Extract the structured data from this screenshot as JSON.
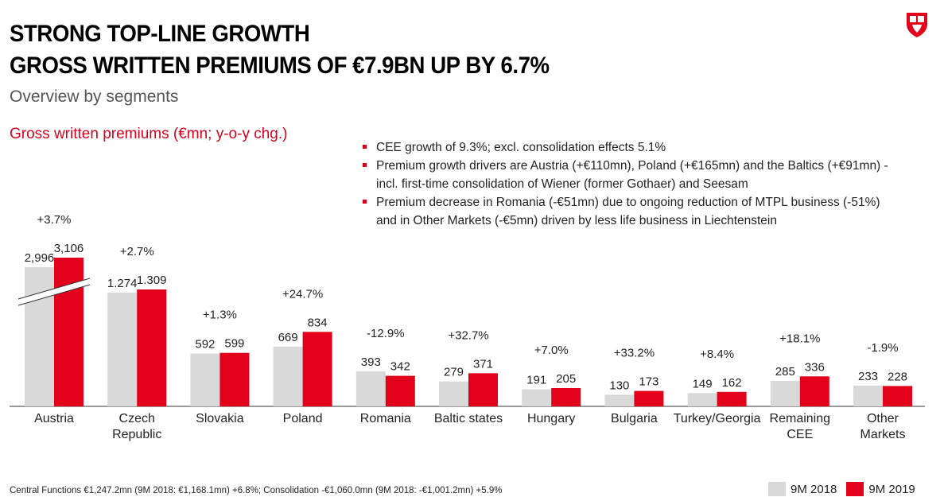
{
  "header": {
    "title_line1": "STRONG TOP-LINE GROWTH",
    "title_line2": "GROSS WRITTEN PREMIUMS OF €7.9BN UP BY 6.7%",
    "subtitle": "Overview by segments"
  },
  "section_label": "Gross written premiums (€mn; y-o-y chg.)",
  "bullets": [
    "CEE growth of 9.3%; excl. consolidation effects 5.1%",
    "Premium growth drivers are Austria (+€110mn), Poland (+€165mn) and the Baltics (+€91mn) - incl. first-time consolidation of Wiener (former Gothaer) and Seesam",
    "Premium decrease in Romania (-€51mn) due to ongoing reduction of MTPL business (-51%) and in Other Markets (-€5mn) driven by less life business in Liechtenstein"
  ],
  "chart_data": {
    "type": "bar",
    "categories": [
      "Austria",
      "Czech Republic",
      "Slovakia",
      "Poland",
      "Romania",
      "Baltic states",
      "Hungary",
      "Bulgaria",
      "Turkey/Georgia",
      "Remaining CEE",
      "Other Markets"
    ],
    "category_lines": [
      [
        "Austria"
      ],
      [
        "Czech",
        "Republic"
      ],
      [
        "Slovakia"
      ],
      [
        "Poland"
      ],
      [
        "Romania"
      ],
      [
        "Baltic states"
      ],
      [
        "Hungary"
      ],
      [
        "Bulgaria"
      ],
      [
        "Turkey/Georgia"
      ],
      [
        "Remaining",
        "CEE"
      ],
      [
        "Other",
        "Markets"
      ]
    ],
    "series": [
      {
        "name": "9M 2018",
        "color": "#d9d9d9",
        "values": [
          2996,
          1274,
          592,
          669,
          393,
          279,
          191,
          130,
          149,
          285,
          233
        ],
        "labels": [
          "2,996",
          "1.274",
          "592",
          "669",
          "393",
          "279",
          "191",
          "130",
          "149",
          "285",
          "233"
        ]
      },
      {
        "name": "9M 2019",
        "color": "#e2001a",
        "values": [
          3106,
          1309,
          599,
          834,
          342,
          371,
          205,
          173,
          162,
          336,
          228
        ],
        "labels": [
          "3,106",
          "1.309",
          "599",
          "834",
          "342",
          "371",
          "205",
          "173",
          "162",
          "336",
          "228"
        ]
      }
    ],
    "changes": [
      "+3.7%",
      "+2.7%",
      "+1.3%",
      "+24.7%",
      "-12.9%",
      "+32.7%",
      "+7.0%",
      "+33.2%",
      "+8.4%",
      "+18.1%",
      "-1.9%"
    ],
    "broken_axis_category": "Austria",
    "legend_position": "bottom-right",
    "grid": false
  },
  "footnote": "Central Functions €1,247.2mn (9M 2018: €1,168.1mn) +6.8%; Consolidation -€1,060.0mn (9M 2018: -€1,001.2mn) +5.9%",
  "legend": {
    "items": [
      "9M 2018",
      "9M 2019"
    ]
  },
  "colors": {
    "accent": "#d5001c",
    "bar_2018": "#d9d9d9",
    "bar_2019": "#e2001a"
  },
  "logo": {
    "icon": "shield-logo-icon"
  }
}
